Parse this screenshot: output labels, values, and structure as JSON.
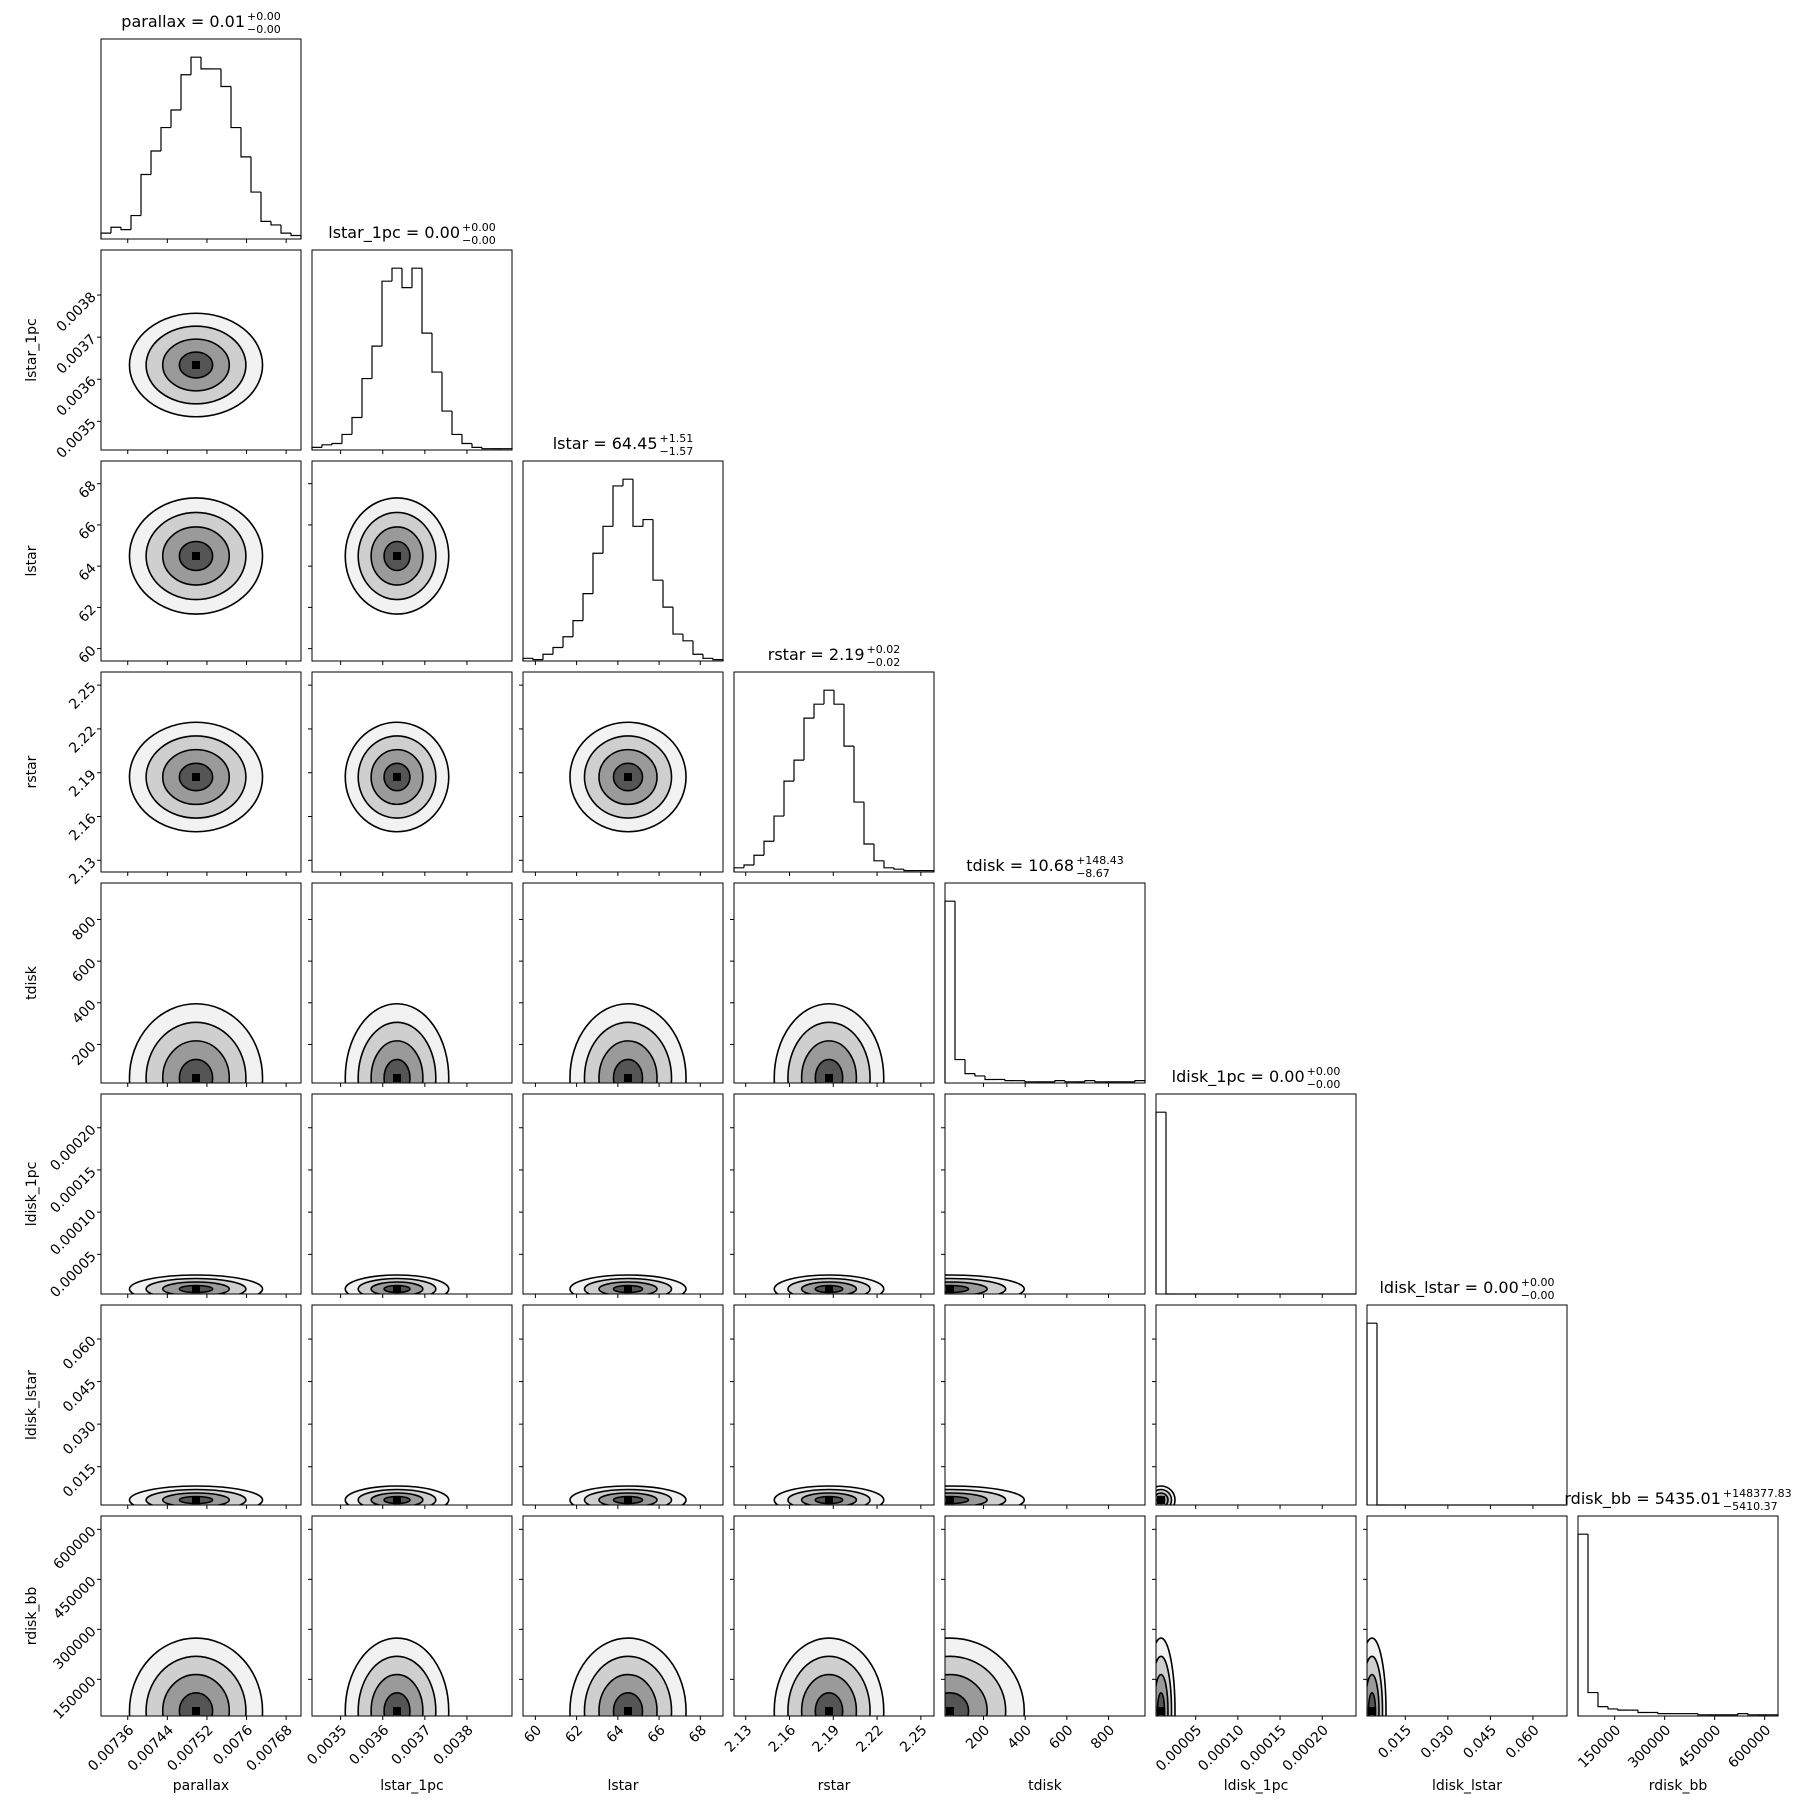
{
  "chart_data": {
    "type": "corner",
    "color": "#000000",
    "parameters": [
      {
        "name": "parallax",
        "title": {
          "label": "parallax = 0.01",
          "plus": "+0.00",
          "minus": "−0.00"
        },
        "lim": [
          0.007306,
          0.00771
        ],
        "ticks": [
          0.00736,
          0.00744,
          0.00752,
          0.0076,
          0.00768
        ],
        "counts": [
          5,
          10,
          8,
          20,
          55,
          75,
          95,
          110,
          140,
          155,
          145,
          145,
          130,
          95,
          70,
          40,
          15,
          12,
          5,
          3
        ]
      },
      {
        "name": "lstar_1pc",
        "title": {
          "label": "lstar_1pc = 0.00",
          "plus": "+0.00",
          "minus": "−0.00"
        },
        "lim": [
          0.003432,
          0.003907
        ],
        "ticks": [
          0.0035,
          0.0036,
          0.0037,
          0.0038
        ],
        "counts": [
          2,
          4,
          5,
          12,
          25,
          55,
          80,
          130,
          140,
          125,
          140,
          90,
          60,
          30,
          12,
          5,
          2,
          1,
          1,
          1
        ]
      },
      {
        "name": "lstar",
        "title": {
          "label": "lstar = 64.45",
          "plus": "+1.51",
          "minus": "−1.57"
        },
        "lim": [
          59.4,
          69.1
        ],
        "ticks": [
          60,
          62,
          64,
          66,
          68
        ],
        "counts": [
          2,
          1,
          5,
          10,
          18,
          30,
          50,
          80,
          100,
          130,
          135,
          100,
          105,
          60,
          40,
          20,
          15,
          5,
          2,
          1
        ]
      },
      {
        "name": "rstar",
        "title": {
          "label": "rstar = 2.19",
          "plus": "+0.02",
          "minus": "−0.02"
        },
        "lim": [
          2.122,
          2.259
        ],
        "ticks": [
          2.13,
          2.16,
          2.19,
          2.22,
          2.25
        ],
        "counts": [
          3,
          5,
          12,
          22,
          40,
          65,
          80,
          110,
          120,
          130,
          120,
          90,
          50,
          20,
          8,
          3,
          2,
          1,
          1,
          1
        ]
      },
      {
        "name": "tdisk",
        "title": {
          "label": "tdisk = 10.68",
          "plus": "+148.43",
          "minus": "−8.67"
        },
        "lim": [
          15,
          975
        ],
        "ticks": [
          200,
          400,
          600,
          800
        ],
        "counts": [
          155,
          20,
          8,
          6,
          3,
          3,
          2,
          2,
          1,
          1,
          1,
          2,
          1,
          1,
          2,
          1,
          1,
          1,
          1,
          2
        ]
      },
      {
        "name": "ldisk_1pc",
        "title": {
          "label": "ldisk_1pc = 0.00",
          "plus": "+0.00",
          "minus": "−0.00"
        },
        "lim": [
          3e-06,
          0.00024
        ],
        "ticks": [
          {
            "value": 5e-05,
            "label": "0.00005"
          },
          {
            "value": 0.0001,
            "label": "0.00010"
          },
          {
            "value": 0.00015,
            "label": "0.00015"
          },
          {
            "value": 0.0002,
            "label": "0.00020"
          }
        ],
        "counts": [
          160,
          0,
          0,
          0,
          0,
          0,
          0,
          0,
          0,
          0,
          0,
          0,
          0,
          0,
          0,
          0,
          0,
          0,
          0,
          0
        ]
      },
      {
        "name": "ldisk_lstar",
        "title": {
          "label": "ldisk_lstar = 0.00",
          "plus": "+0.00",
          "minus": "−0.00"
        },
        "lim": [
          0.0015,
          0.072
        ],
        "ticks": [
          0.015,
          {
            "value": 0.03,
            "label": "0.030"
          },
          0.045,
          {
            "value": 0.06,
            "label": "0.060"
          }
        ],
        "counts": [
          160,
          0,
          0,
          0,
          0,
          0,
          0,
          0,
          0,
          0,
          0,
          0,
          0,
          0,
          0,
          0,
          0,
          0,
          0,
          0
        ]
      },
      {
        "name": "rdisk_bb",
        "title": {
          "label": "rdisk_bb = 5435.01",
          "plus": "+148377.83",
          "minus": "−5410.37"
        },
        "lim": [
          40000,
          640000
        ],
        "ticks": [
          150000,
          300000,
          450000,
          600000
        ],
        "counts": [
          155,
          20,
          8,
          6,
          5,
          5,
          3,
          3,
          2,
          2,
          2,
          2,
          1,
          1,
          1,
          1,
          2,
          1,
          1,
          1
        ]
      }
    ]
  }
}
